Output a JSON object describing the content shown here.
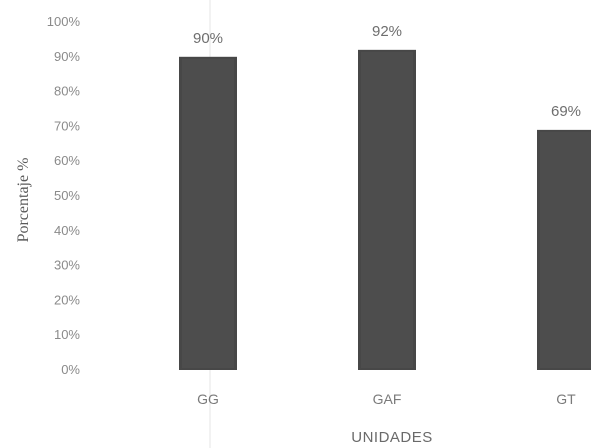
{
  "chart_data": {
    "type": "bar",
    "categories": [
      "GG",
      "GAF",
      "GT"
    ],
    "values": [
      90,
      92,
      69
    ],
    "data_labels": [
      "90%",
      "92%",
      "69%"
    ],
    "title": "",
    "xlabel": "UNIDADES",
    "ylabel": "Porcentaje %",
    "ylim": [
      0,
      100
    ],
    "y_ticks": [
      "0%",
      "10%",
      "20%",
      "30%",
      "40%",
      "50%",
      "60%",
      "70%",
      "80%",
      "90%",
      "100%"
    ],
    "bar_color": "#474747",
    "grid": false,
    "legend": "none"
  }
}
